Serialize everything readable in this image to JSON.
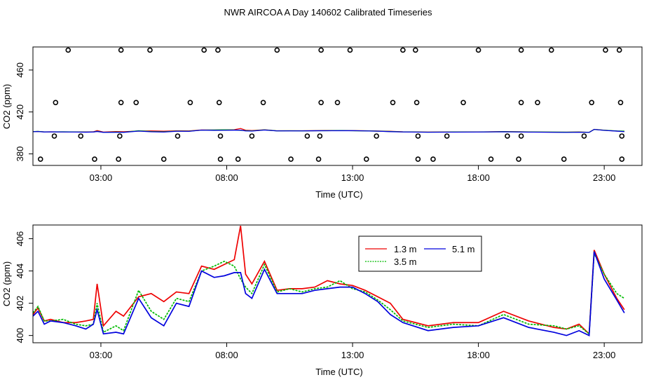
{
  "chart_data": {
    "title": "NWR AIRCOA A  Day 140602  Calibrated Timeseries",
    "panels": [
      {
        "type": "scatter",
        "xlabel": "Time (UTC)",
        "ylabel": "CO2 (ppm)",
        "xlim": [
          0.3,
          24.5
        ],
        "ylim": [
          369,
          482
        ],
        "xticks": [
          3,
          8,
          13,
          18,
          23
        ],
        "xtick_labels": [
          "03:00",
          "08:00",
          "13:00",
          "18:00",
          "23:00"
        ],
        "yticks": [
          380,
          420,
          460
        ],
        "ytick_labels": [
          "380",
          "420",
          "460"
        ],
        "calibration_points": [
          {
            "x": 1.7,
            "y": 479
          },
          {
            "x": 3.8,
            "y": 479
          },
          {
            "x": 4.95,
            "y": 479
          },
          {
            "x": 7.1,
            "y": 479
          },
          {
            "x": 7.65,
            "y": 479
          },
          {
            "x": 10.0,
            "y": 479
          },
          {
            "x": 11.75,
            "y": 479
          },
          {
            "x": 12.9,
            "y": 479
          },
          {
            "x": 15.0,
            "y": 479
          },
          {
            "x": 15.5,
            "y": 479
          },
          {
            "x": 18.0,
            "y": 479
          },
          {
            "x": 19.7,
            "y": 479
          },
          {
            "x": 20.9,
            "y": 479
          },
          {
            "x": 23.05,
            "y": 479
          },
          {
            "x": 23.6,
            "y": 479
          },
          {
            "x": 1.2,
            "y": 429
          },
          {
            "x": 3.8,
            "y": 429
          },
          {
            "x": 4.4,
            "y": 429
          },
          {
            "x": 6.55,
            "y": 429
          },
          {
            "x": 7.7,
            "y": 429
          },
          {
            "x": 9.45,
            "y": 429
          },
          {
            "x": 11.75,
            "y": 429
          },
          {
            "x": 12.4,
            "y": 429
          },
          {
            "x": 14.6,
            "y": 429
          },
          {
            "x": 15.55,
            "y": 429
          },
          {
            "x": 17.4,
            "y": 429
          },
          {
            "x": 19.7,
            "y": 429
          },
          {
            "x": 20.35,
            "y": 429
          },
          {
            "x": 22.5,
            "y": 429
          },
          {
            "x": 23.65,
            "y": 429
          },
          {
            "x": 1.15,
            "y": 397
          },
          {
            "x": 2.2,
            "y": 397
          },
          {
            "x": 3.75,
            "y": 397
          },
          {
            "x": 6.05,
            "y": 397
          },
          {
            "x": 7.75,
            "y": 397
          },
          {
            "x": 9.0,
            "y": 397
          },
          {
            "x": 11.2,
            "y": 397
          },
          {
            "x": 11.7,
            "y": 397
          },
          {
            "x": 13.95,
            "y": 397
          },
          {
            "x": 15.6,
            "y": 397
          },
          {
            "x": 16.75,
            "y": 397
          },
          {
            "x": 19.15,
            "y": 397
          },
          {
            "x": 19.7,
            "y": 397
          },
          {
            "x": 22.2,
            "y": 397
          },
          {
            "x": 23.7,
            "y": 397
          },
          {
            "x": 0.6,
            "y": 375
          },
          {
            "x": 2.75,
            "y": 375
          },
          {
            "x": 3.7,
            "y": 375
          },
          {
            "x": 5.5,
            "y": 375
          },
          {
            "x": 7.75,
            "y": 375
          },
          {
            "x": 8.45,
            "y": 375
          },
          {
            "x": 10.55,
            "y": 375
          },
          {
            "x": 11.65,
            "y": 375
          },
          {
            "x": 13.55,
            "y": 375
          },
          {
            "x": 15.6,
            "y": 375
          },
          {
            "x": 16.2,
            "y": 375
          },
          {
            "x": 18.5,
            "y": 375
          },
          {
            "x": 19.6,
            "y": 375
          },
          {
            "x": 21.4,
            "y": 375
          },
          {
            "x": 23.7,
            "y": 375
          }
        ]
      },
      {
        "type": "line",
        "xlabel": "Time (UTC)",
        "ylabel": "CO2 (ppm)",
        "xlim": [
          0.3,
          24.5
        ],
        "ylim": [
          399.55,
          406.85
        ],
        "xticks": [
          3,
          8,
          13,
          18,
          23
        ],
        "xtick_labels": [
          "03:00",
          "08:00",
          "13:00",
          "18:00",
          "23:00"
        ],
        "yticks": [
          400,
          402,
          404,
          406
        ],
        "ytick_labels": [
          "400",
          "402",
          "404",
          "406"
        ],
        "legend": {
          "position": "top-center"
        },
        "x": [
          0.3,
          0.5,
          0.75,
          1.0,
          1.5,
          2.0,
          2.4,
          2.7,
          2.85,
          3.1,
          3.6,
          3.9,
          4.5,
          5.0,
          5.5,
          6.0,
          6.5,
          7.0,
          7.5,
          7.9,
          8.3,
          8.55,
          8.75,
          9.0,
          9.5,
          10.0,
          10.5,
          11.0,
          11.5,
          12.0,
          12.5,
          13.0,
          13.5,
          14.0,
          14.5,
          15.0,
          16.0,
          17.0,
          18.0,
          19.0,
          20.0,
          21.0,
          21.5,
          22.0,
          22.4,
          22.6,
          23.0,
          23.5,
          23.8
        ],
        "series": [
          {
            "name": "1.3 m",
            "color": "#ee0000",
            "values": [
              401.3,
              401.7,
              400.9,
              401.0,
              400.8,
              400.8,
              400.9,
              401.0,
              403.2,
              400.6,
              401.5,
              401.2,
              402.4,
              402.6,
              402.1,
              402.7,
              402.6,
              404.3,
              404.1,
              404.4,
              404.7,
              406.8,
              403.8,
              403.2,
              404.6,
              402.8,
              402.9,
              402.9,
              403.0,
              403.4,
              403.2,
              403.1,
              402.8,
              402.4,
              402.0,
              401.0,
              400.6,
              400.8,
              400.8,
              401.5,
              400.9,
              400.5,
              400.4,
              400.7,
              400.1,
              405.3,
              403.8,
              402.3,
              401.6
            ]
          },
          {
            "name": "3.5 m",
            "color": "#00bb00",
            "values": [
              401.4,
              401.8,
              400.9,
              400.9,
              401.0,
              400.7,
              400.6,
              400.7,
              402.0,
              400.2,
              400.6,
              400.3,
              402.8,
              401.5,
              401.0,
              402.3,
              402.1,
              404.0,
              404.3,
              404.6,
              404.3,
              403.5,
              403.0,
              402.6,
              404.4,
              402.7,
              402.9,
              402.7,
              402.9,
              403.0,
              403.4,
              402.9,
              402.7,
              402.2,
              401.6,
              400.9,
              400.5,
              400.7,
              400.6,
              401.3,
              400.7,
              400.6,
              400.4,
              400.6,
              400.1,
              405.1,
              403.8,
              402.6,
              402.3
            ]
          },
          {
            "name": "5.1 m",
            "color": "#0000dd",
            "values": [
              401.2,
              401.5,
              400.7,
              400.9,
              400.8,
              400.6,
              400.4,
              400.7,
              401.6,
              400.1,
              400.2,
              400.1,
              402.3,
              401.1,
              400.6,
              402.0,
              401.8,
              404.0,
              403.6,
              403.7,
              403.9,
              403.9,
              402.6,
              402.3,
              404.1,
              402.6,
              402.6,
              402.6,
              402.8,
              402.9,
              403.0,
              403.0,
              402.6,
              402.1,
              401.3,
              400.8,
              400.3,
              400.5,
              400.6,
              401.1,
              400.5,
              400.2,
              400.0,
              400.3,
              400.0,
              405.2,
              403.5,
              402.2,
              401.4
            ]
          }
        ]
      }
    ]
  }
}
